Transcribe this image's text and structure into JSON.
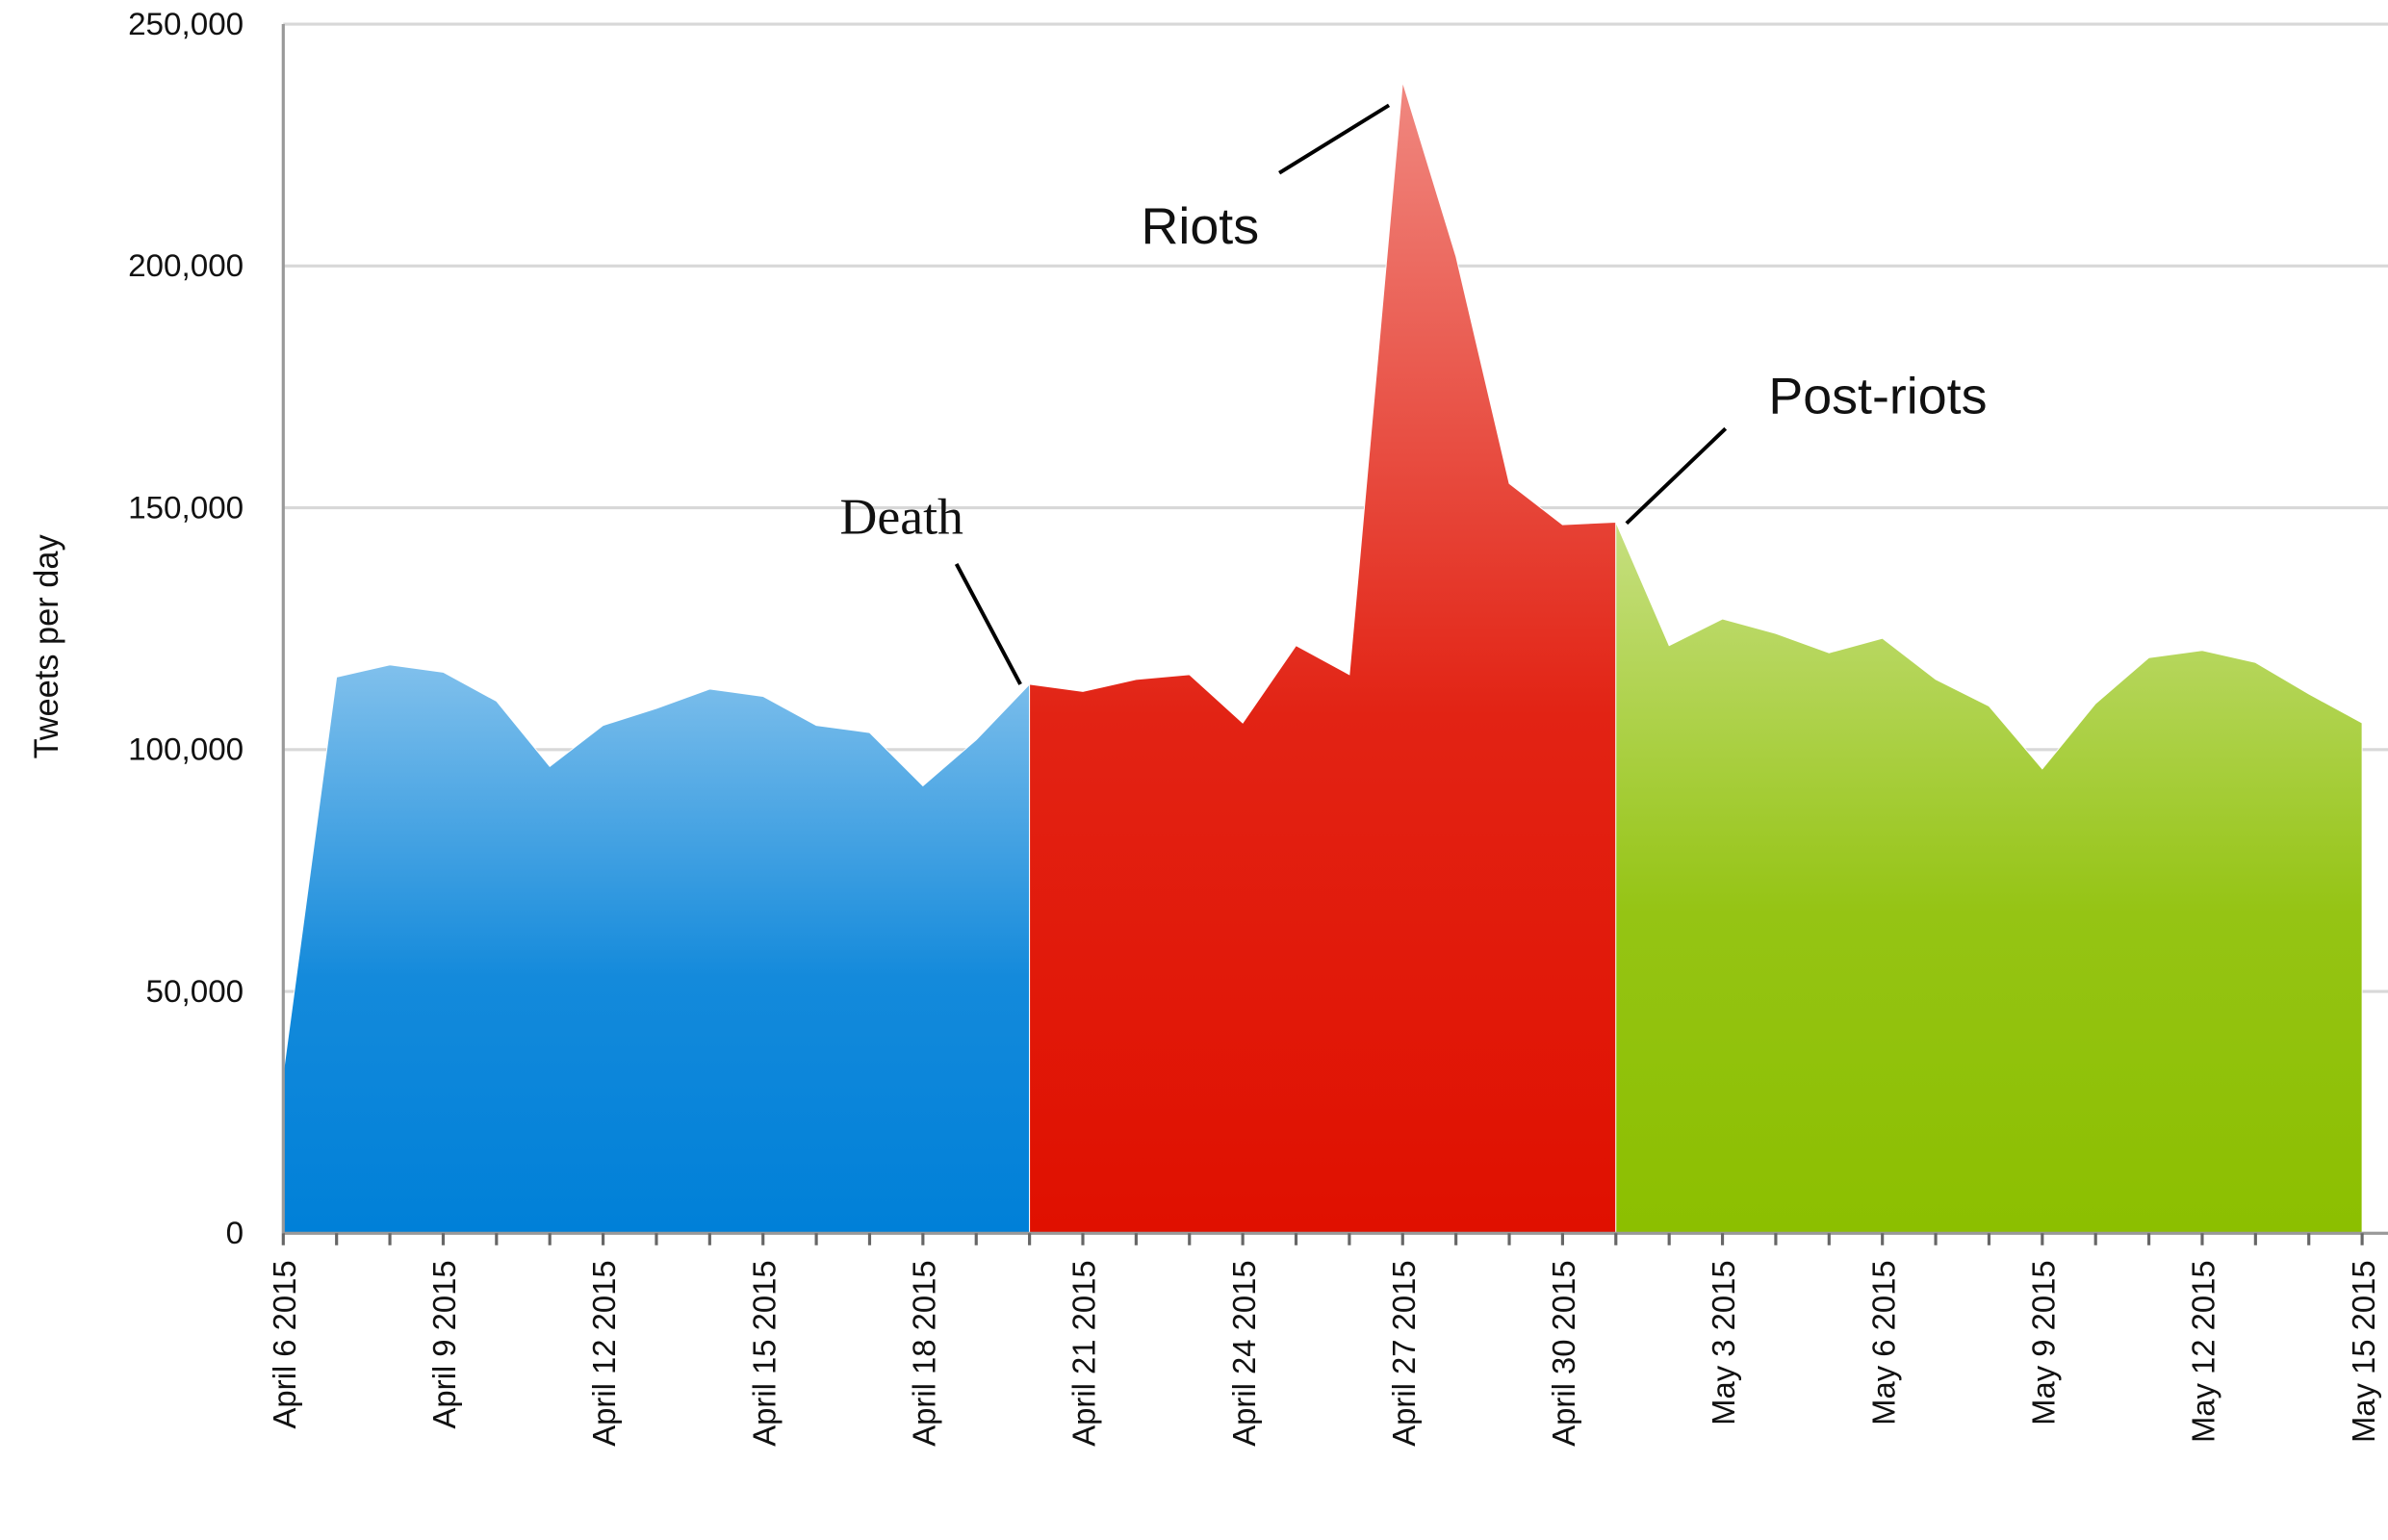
{
  "chart_data": {
    "type": "area",
    "y_axis_label": "Tweets per day",
    "categories": [
      "April 6 2015",
      null,
      null,
      "April 9 2015",
      null,
      null,
      "April 12 2015",
      null,
      null,
      "April 15 2015",
      null,
      null,
      "April 18 2015",
      null,
      null,
      "April 21 2015",
      null,
      null,
      "April 24 2015",
      null,
      null,
      "April 27 2015",
      null,
      null,
      "April 30 2015",
      null,
      null,
      "May 3 2015",
      null,
      null,
      "May 6 2015",
      null,
      null,
      "May 9 2015",
      null,
      null,
      "May 12 2015",
      null,
      null,
      "May 15 2015"
    ],
    "series": [
      {
        "name": "Death",
        "color": "#0080d8",
        "values": [
          33000,
          115000,
          117500,
          116000,
          110000,
          96500,
          105000,
          108500,
          112500,
          111000,
          105000,
          103500,
          92500,
          102000,
          113500,
          null,
          null,
          null,
          null,
          null,
          null,
          null,
          null,
          null,
          null,
          null,
          null,
          null,
          null,
          null,
          null,
          null,
          null,
          null,
          null,
          null,
          null,
          null,
          null,
          null
        ]
      },
      {
        "name": "Riots",
        "color": "#e01000",
        "values": [
          null,
          null,
          null,
          null,
          null,
          null,
          null,
          null,
          null,
          null,
          null,
          null,
          null,
          null,
          113500,
          112000,
          114500,
          115500,
          105500,
          121500,
          115500,
          238000,
          202000,
          155000,
          146500,
          147000,
          null,
          null,
          null,
          null,
          null,
          null,
          null,
          null,
          null,
          null,
          null,
          null,
          null,
          null
        ]
      },
      {
        "name": "Post-riots",
        "color": "#8cbf00",
        "values": [
          null,
          null,
          null,
          null,
          null,
          null,
          null,
          null,
          null,
          null,
          null,
          null,
          null,
          null,
          null,
          null,
          null,
          null,
          null,
          null,
          null,
          null,
          null,
          null,
          null,
          147000,
          121500,
          127000,
          124000,
          120000,
          123000,
          114500,
          109000,
          96000,
          109500,
          119000,
          120500,
          118000,
          111500,
          105500
        ]
      }
    ],
    "ylim": [
      0,
      250000
    ],
    "yticks": [
      0,
      {
        "value": 50000,
        "label": "50,000"
      },
      {
        "value": 100000,
        "label": "100,000"
      },
      {
        "value": 150000,
        "label": "150,000"
      },
      {
        "value": 200000,
        "label": "200,000"
      },
      {
        "value": 250000,
        "label": "250,000"
      }
    ],
    "grid": true
  }
}
